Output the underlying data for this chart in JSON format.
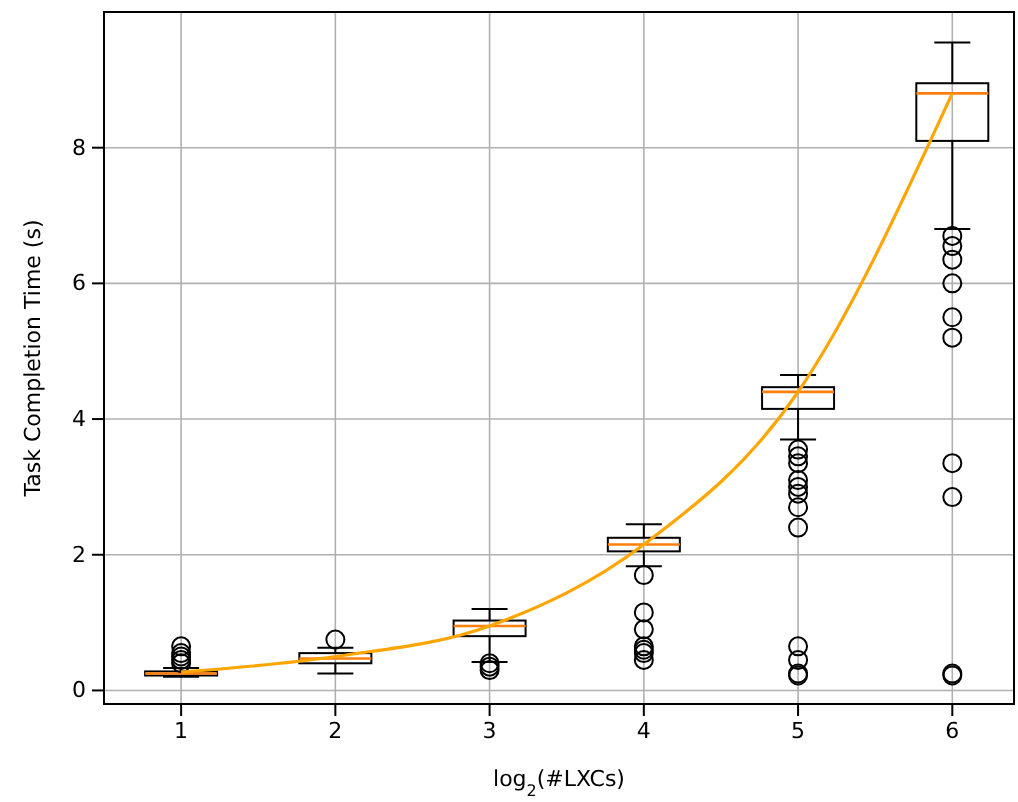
{
  "chart_data": {
    "type": "box",
    "xlabel": "log$_{2}$(#LXCs)",
    "ylabel": "Task Completion Time (s)",
    "categories": [
      "1",
      "2",
      "3",
      "4",
      "5",
      "6"
    ],
    "ylim": [
      -0.2,
      10
    ],
    "yticks": [
      0,
      2,
      4,
      6,
      8
    ],
    "grid": true,
    "color": "#000000",
    "boxes": [
      {
        "low": 0.2,
        "q1": 0.22,
        "median": 0.25,
        "q3": 0.28,
        "high": 0.33,
        "outliers": [
          0.4,
          0.45,
          0.5,
          0.55,
          0.65
        ]
      },
      {
        "low": 0.25,
        "q1": 0.4,
        "median": 0.47,
        "q3": 0.55,
        "high": 0.63,
        "outliers": [
          0.75
        ]
      },
      {
        "low": 0.42,
        "q1": 0.8,
        "median": 0.95,
        "q3": 1.03,
        "high": 1.2,
        "outliers": [
          0.3,
          0.35,
          0.4
        ]
      },
      {
        "low": 1.83,
        "q1": 2.05,
        "median": 2.15,
        "q3": 2.25,
        "high": 2.45,
        "outliers": [
          1.7,
          1.15,
          0.9,
          0.65,
          0.6,
          0.55,
          0.45
        ]
      },
      {
        "low": 3.7,
        "q1": 4.15,
        "median": 4.4,
        "q3": 4.47,
        "high": 4.65,
        "outliers": [
          3.55,
          3.45,
          3.35,
          3.1,
          3.0,
          2.9,
          2.7,
          2.4,
          0.65,
          0.45,
          0.25,
          0.22
        ]
      },
      {
        "low": 6.8,
        "q1": 8.1,
        "median": 8.8,
        "q3": 8.95,
        "high": 9.55,
        "outliers": [
          6.7,
          6.55,
          6.35,
          6.0,
          5.5,
          5.2,
          3.35,
          2.85,
          0.25,
          0.22
        ]
      }
    ],
    "series": [
      {
        "type": "line",
        "color": "#ffa500",
        "values": [
          0.27,
          0.5,
          0.95,
          2.15,
          4.4,
          8.8
        ]
      }
    ]
  }
}
